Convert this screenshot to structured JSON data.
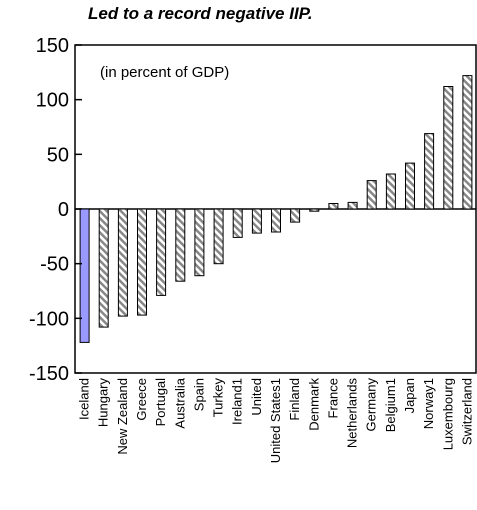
{
  "chart_data": {
    "type": "bar",
    "title": "Led to a record negative IIP.",
    "annotation": "(in percent of GDP)",
    "ylim": [
      -150,
      150
    ],
    "yticks": [
      150,
      100,
      50,
      0,
      -50,
      -100,
      -150
    ],
    "ytick_labels": [
      "150",
      "100",
      "50",
      "0",
      "-50",
      "-100",
      "-150"
    ],
    "grid": false,
    "categories": [
      "Iceland",
      "Hungary",
      "New Zealand",
      "Greece",
      "Portugal",
      "Australia",
      "Spain",
      "Turkey",
      "Ireland1",
      "United",
      "United States1",
      "Finland",
      "Denmark",
      "France",
      "Netherlands",
      "Germany",
      "Belgium1",
      "Japan",
      "Norway1",
      "Luxembourg",
      "Switzerland"
    ],
    "values": [
      -122,
      -108,
      -98,
      -97,
      -79,
      -66,
      -61,
      -50,
      -26,
      -22,
      -21,
      -12,
      -2,
      5,
      6,
      26,
      32,
      42,
      69,
      112,
      122
    ],
    "colors": {
      "highlight": "#9999ff",
      "hatch_stripe": "#888888",
      "outline": "#000000"
    }
  }
}
